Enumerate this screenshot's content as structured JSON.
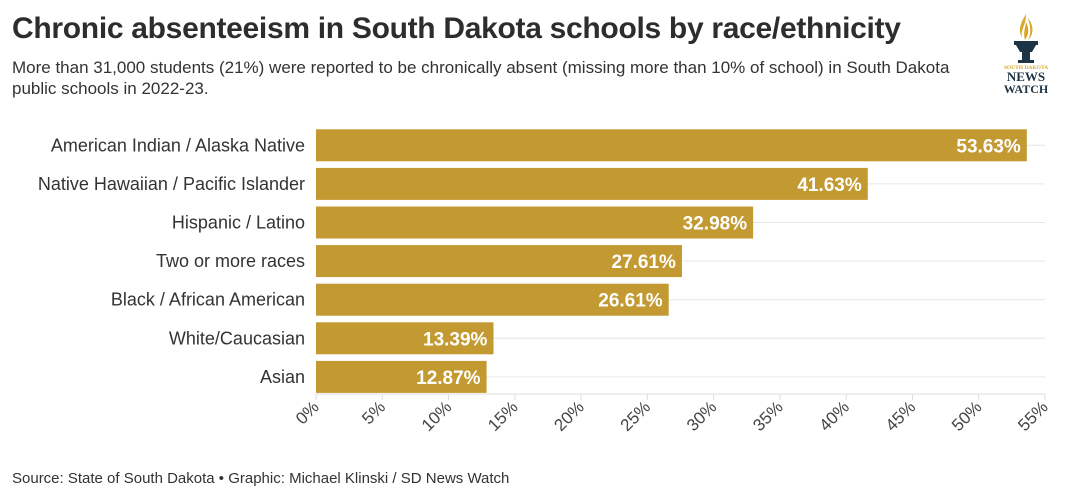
{
  "header": {
    "title": "Chronic absenteeism in South Dakota schools by race/ethnicity",
    "subtitle": "More than 31,000 students (21%) were reported to be chronically absent (missing more than 10% of school) in South Dakota public schools in 2022-23."
  },
  "logo": {
    "top": "SOUTH DAKOTA",
    "line1": "NEWS",
    "line2": "WATCH"
  },
  "footer": {
    "source": "Source: State of South Dakota • Graphic: Michael Klinski / SD News Watch"
  },
  "colors": {
    "bar": "#c39a32",
    "grid": "#e6e6e6",
    "navy": "#1d3447",
    "gold": "#d9a62a"
  },
  "chart_data": {
    "type": "bar",
    "orientation": "horizontal",
    "categories": [
      "American Indian / Alaska Native",
      "Native Hawaiian / Pacific Islander",
      "Hispanic / Latino",
      "Two or more races",
      "Black / African American",
      "White/Caucasian",
      "Asian"
    ],
    "values": [
      53.63,
      41.63,
      32.98,
      27.61,
      26.61,
      13.39,
      12.87
    ],
    "value_labels": [
      "53.63%",
      "41.63%",
      "32.98%",
      "27.61%",
      "26.61%",
      "13.39%",
      "12.87%"
    ],
    "xlim": [
      0,
      55
    ],
    "xticks": [
      0,
      5,
      10,
      15,
      20,
      25,
      30,
      35,
      40,
      45,
      50,
      55
    ],
    "xtick_labels": [
      "0%",
      "5%",
      "10%",
      "15%",
      "20%",
      "25%",
      "30%",
      "35%",
      "40%",
      "45%",
      "50%",
      "55%"
    ],
    "grid": true
  }
}
